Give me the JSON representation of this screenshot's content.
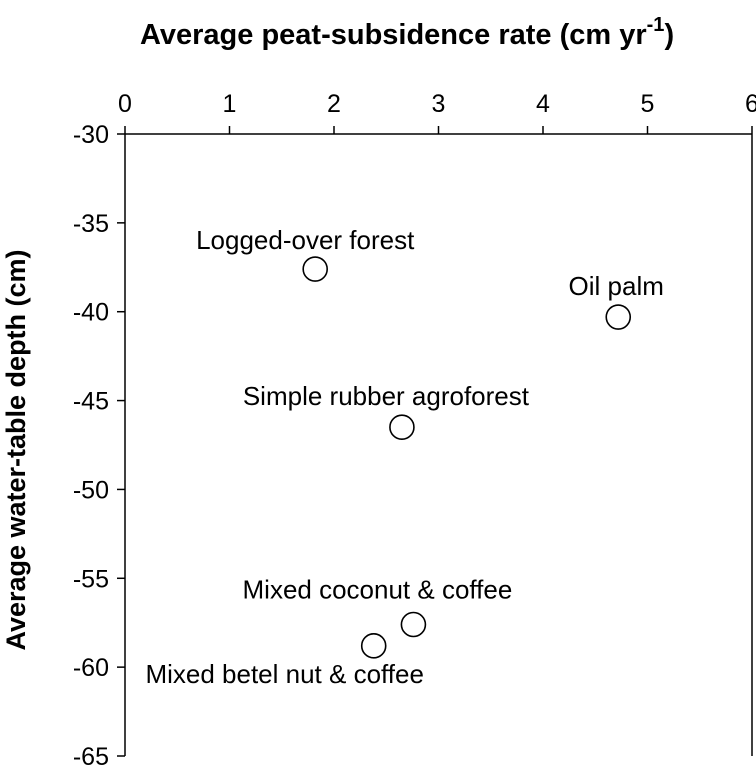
{
  "chart_data": {
    "type": "scatter",
    "title": "",
    "xlabel": "Average peat-subsidence rate (cm yr",
    "xlabel_sup": "-1",
    "xlabel_close": ")",
    "ylabel": "Average water-table depth (cm)",
    "xlim": [
      0,
      6
    ],
    "ylim": [
      -65,
      -30
    ],
    "xticks": [
      "0",
      "1",
      "2",
      "3",
      "4",
      "5",
      "6"
    ],
    "yticks": [
      "-30",
      "-35",
      "-40",
      "-45",
      "-50",
      "-55",
      "-60",
      "-65"
    ],
    "x_axis_position": "top",
    "grid": false,
    "marker": "open-circle",
    "points": [
      {
        "label": "Logged-over forest",
        "x": 1.82,
        "y": -37.6
      },
      {
        "label": "Oil palm",
        "x": 4.72,
        "y": -40.3
      },
      {
        "label": "Simple rubber agroforest",
        "x": 2.65,
        "y": -46.5
      },
      {
        "label": "Mixed coconut & coffee",
        "x": 2.76,
        "y": -57.6
      },
      {
        "label": "Mixed betel nut & coffee",
        "x": 2.38,
        "y": -58.8
      }
    ]
  },
  "colors": {
    "background": "#ffffff",
    "axis": "#000000",
    "marker_fill": "#ffffff",
    "marker_stroke": "#000000"
  }
}
